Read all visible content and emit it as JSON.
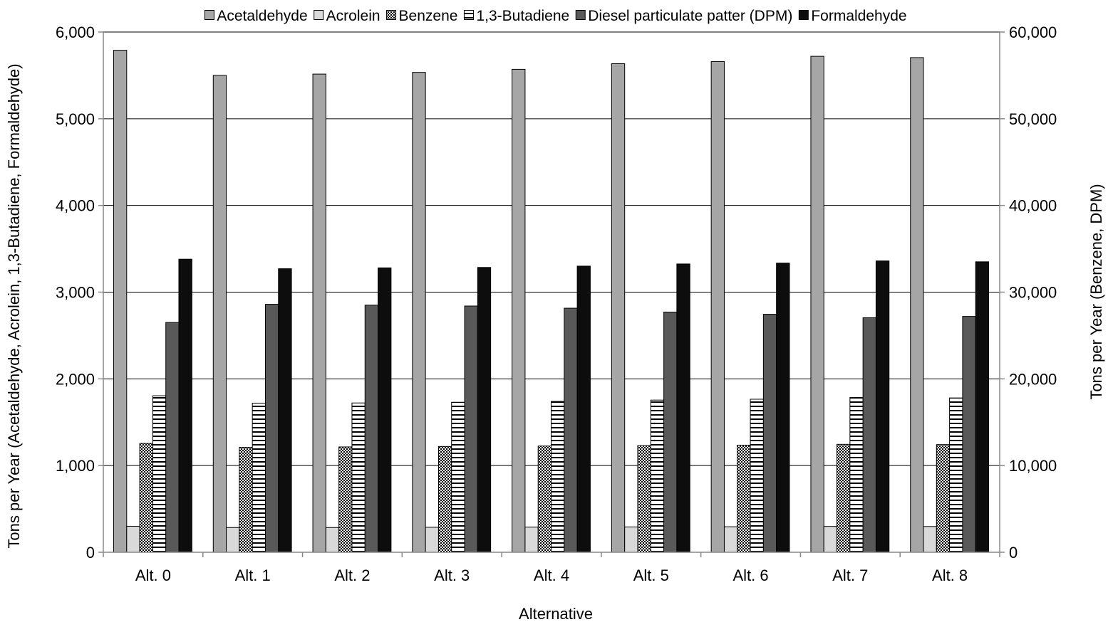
{
  "chart_data": {
    "type": "bar",
    "title": "",
    "xlabel": "Alternative",
    "ylabel": "Tons per Year (Acetaldehyde, Acrolein, 1,3-Butadiene, Formaldehyde)",
    "y2label": "Tons per Year (Benzene, DPM)",
    "ylim": [
      0,
      6000
    ],
    "y2lim": [
      0,
      60000
    ],
    "yticks": [
      "0",
      "1,000",
      "2,000",
      "3,000",
      "4,000",
      "5,000",
      "6,000"
    ],
    "y2ticks": [
      "0",
      "10,000",
      "20,000",
      "30,000",
      "40,000",
      "50,000",
      "60,000"
    ],
    "categories": [
      "Alt. 0",
      "Alt. 1",
      "Alt. 2",
      "Alt. 3",
      "Alt. 4",
      "Alt. 5",
      "Alt. 6",
      "Alt. 7",
      "Alt. 8"
    ],
    "legend_position": "top",
    "grid": "horizontal",
    "series": [
      {
        "name": "Acetaldehyde",
        "axis": "left",
        "fill": "#a6a6a6",
        "pattern": "solid",
        "values": [
          5790,
          5500,
          5515,
          5535,
          5570,
          5635,
          5660,
          5720,
          5705
        ]
      },
      {
        "name": "Acrolein",
        "axis": "left",
        "fill": "#d9d9d9",
        "pattern": "solid",
        "values": [
          300,
          285,
          285,
          288,
          290,
          292,
          294,
          298,
          297
        ]
      },
      {
        "name": "Benzene",
        "axis": "right",
        "fill": "#ffffff",
        "pattern": "checker",
        "values": [
          12550,
          12100,
          12150,
          12200,
          12250,
          12300,
          12350,
          12450,
          12420
        ]
      },
      {
        "name": "1,3-Butadiene",
        "axis": "left",
        "fill": "#ffffff",
        "pattern": "hstripes",
        "values": [
          1805,
          1720,
          1722,
          1730,
          1740,
          1755,
          1765,
          1785,
          1780
        ]
      },
      {
        "name": "Diesel particulate patter (DPM)",
        "axis": "right",
        "fill": "#595959",
        "pattern": "solid",
        "values": [
          26500,
          28600,
          28500,
          28400,
          28150,
          27700,
          27450,
          27050,
          27200
        ]
      },
      {
        "name": "Formaldehyde",
        "axis": "left",
        "fill": "#0d0d0d",
        "pattern": "solid",
        "values": [
          3380,
          3270,
          3280,
          3285,
          3300,
          3325,
          3335,
          3360,
          3350
        ]
      }
    ]
  }
}
